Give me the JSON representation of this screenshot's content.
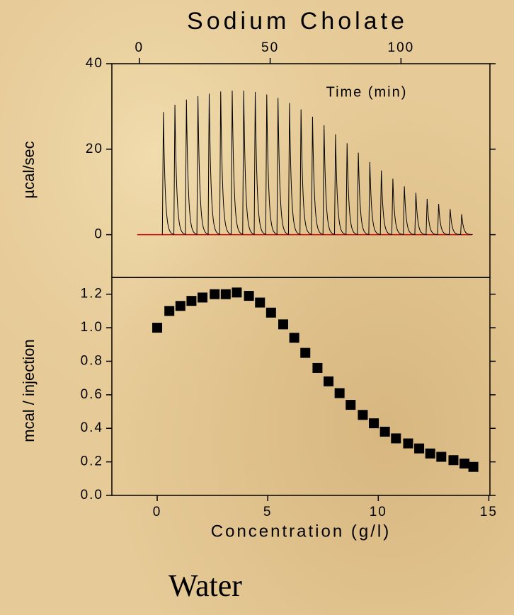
{
  "chart_data": [
    {
      "type": "spikes",
      "title": "Sodium Cholate",
      "xlabel": "Time (min)",
      "ylabel": "µcal/sec",
      "x": [
        9.2,
        13.6,
        18.0,
        22.4,
        26.7,
        31.1,
        35.5,
        39.9,
        44.3,
        48.7,
        53.0,
        57.4,
        61.8,
        66.2,
        70.6,
        75.0,
        79.4,
        83.7,
        88.1,
        92.5,
        96.9,
        101.3,
        105.7,
        110.0,
        114.4,
        118.8,
        123.2
      ],
      "series": [
        {
          "color": "#000000",
          "values": [
            28.7,
            30.4,
            31.6,
            32.4,
            33.0,
            33.5,
            33.7,
            33.7,
            33.4,
            32.8,
            32.0,
            30.8,
            29.3,
            27.6,
            25.6,
            23.5,
            21.4,
            19.2,
            17.0,
            15.0,
            13.1,
            11.3,
            9.8,
            8.4,
            7.2,
            6.0,
            4.8
          ]
        }
      ],
      "baseline_color": "#cc0000",
      "xlim": [
        -10.5,
        134
      ],
      "xticks": [
        0,
        50,
        100
      ],
      "ylim": [
        -10,
        40
      ],
      "yticks": [
        0,
        20,
        40
      ]
    },
    {
      "type": "scatter",
      "xlabel": "Concentration (g/l)",
      "ylabel": "mcal / injection",
      "annotation": "Water",
      "x": [
        0,
        0.55,
        1.05,
        1.55,
        2.05,
        2.6,
        3.1,
        3.6,
        4.15,
        4.65,
        5.15,
        5.7,
        6.2,
        6.7,
        7.25,
        7.75,
        8.25,
        8.75,
        9.3,
        9.8,
        10.3,
        10.8,
        11.35,
        11.85,
        12.35,
        12.85,
        13.4,
        13.9,
        14.3
      ],
      "series": [
        {
          "color": "#000000",
          "values": [
            1.0,
            1.1,
            1.13,
            1.16,
            1.18,
            1.2,
            1.2,
            1.21,
            1.19,
            1.15,
            1.09,
            1.02,
            0.94,
            0.85,
            0.76,
            0.68,
            0.61,
            0.54,
            0.48,
            0.43,
            0.38,
            0.34,
            0.31,
            0.28,
            0.25,
            0.23,
            0.21,
            0.19,
            0.17
          ]
        }
      ],
      "xlim": [
        -2.05,
        15.05
      ],
      "xticks": [
        0,
        5,
        10,
        15
      ],
      "ylim": [
        0,
        1.3
      ],
      "yticks": [
        {
          "value": 0,
          "label": "0.0"
        },
        0.2,
        0.4,
        0.6,
        0.8,
        {
          "value": 1,
          "label": "1.0"
        },
        1.2
      ]
    }
  ]
}
